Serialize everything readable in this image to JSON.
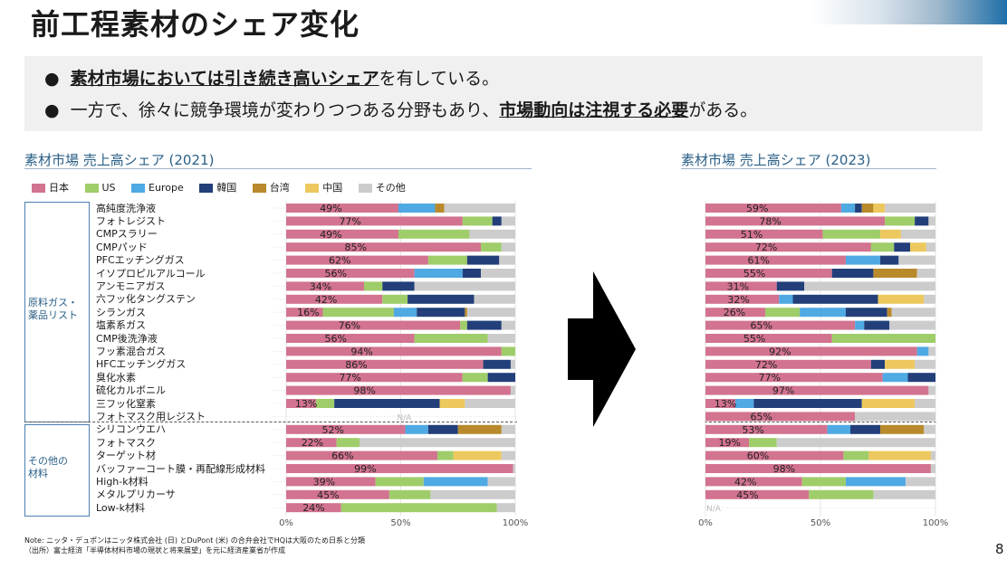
{
  "title": "前工程素材のシェア変化",
  "bullets": [
    {
      "bold": "素材市場においては引き続き高いシェア",
      "rest": "を有している。",
      "pre": ""
    },
    {
      "pre": "一方で、徐々に競争環境が変わりつつある分野もあり、",
      "bold": "市場動向は注視する必要",
      "rest": "がある。"
    }
  ],
  "legend": [
    {
      "name": "日本",
      "color": "#d2738f"
    },
    {
      "name": "US",
      "color": "#9fcd69"
    },
    {
      "name": "Europe",
      "color": "#4fa9e3"
    },
    {
      "name": "韓国",
      "color": "#223f7a"
    },
    {
      "name": "台湾",
      "color": "#b88a2c"
    },
    {
      "name": "中国",
      "color": "#ecc85e"
    },
    {
      "name": "その他",
      "color": "#cccccc"
    }
  ],
  "groups": [
    {
      "name": "原料ガス・\n薬品リスト"
    },
    {
      "name": "その他の\n材料"
    }
  ],
  "chart_data": [
    {
      "type": "stacked-bar-horizontal",
      "title": "素材市場 売上高シェア (2021)",
      "categories": [
        "高純度洗浄液",
        "フォトレジスト",
        "CMPスラリー",
        "CMPパッド",
        "PFCエッチングガス",
        "イソプロピルアルコール",
        "アンモニアガス",
        "六フッ化タングステン",
        "シランガス",
        "塩素系ガス",
        "CMP後洗浄液",
        "フッ素混合ガス",
        "HFCエッチングガス",
        "臭化水素",
        "硫化カルボニル",
        "三フッ化窒素",
        "フォトマスク用レジスト",
        "シリコンウエハ",
        "フォトマスク",
        "ターゲット材",
        "バッファーコート膜・再配線形成材料",
        "High-k材料",
        "メタルプリカーサ",
        "Low-k材料"
      ],
      "series_order": [
        "日本",
        "US",
        "Europe",
        "韓国",
        "台湾",
        "中国",
        "その他"
      ],
      "values": [
        [
          49,
          0,
          16,
          0,
          4,
          0,
          31
        ],
        [
          77,
          13,
          0,
          4,
          0,
          0,
          6
        ],
        [
          49,
          31,
          0,
          0,
          0,
          0,
          20
        ],
        [
          85,
          9,
          0,
          0,
          0,
          0,
          6
        ],
        [
          62,
          17,
          0,
          14,
          0,
          0,
          7
        ],
        [
          56,
          0,
          21,
          8,
          0,
          0,
          15
        ],
        [
          34,
          8,
          0,
          14,
          0,
          0,
          44
        ],
        [
          42,
          11,
          0,
          29,
          0,
          0,
          18
        ],
        [
          16,
          31,
          10,
          21,
          1,
          0,
          21
        ],
        [
          76,
          3,
          0,
          15,
          0,
          0,
          6
        ],
        [
          56,
          32,
          0,
          0,
          0,
          0,
          12
        ],
        [
          94,
          6,
          0,
          0,
          0,
          0,
          0
        ],
        [
          86,
          0,
          0,
          12,
          0,
          0,
          2
        ],
        [
          77,
          11,
          0,
          12,
          0,
          0,
          0
        ],
        [
          98,
          0,
          0,
          0,
          0,
          0,
          2
        ],
        [
          13,
          8,
          0,
          46,
          0,
          11,
          22
        ],
        [
          null,
          null,
          null,
          null,
          null,
          null,
          null
        ],
        [
          52,
          0,
          10,
          13,
          19,
          0,
          6
        ],
        [
          22,
          10,
          0,
          0,
          0,
          0,
          68
        ],
        [
          66,
          7,
          0,
          0,
          0,
          21,
          6
        ],
        [
          99,
          0,
          0,
          0,
          0,
          0,
          1
        ],
        [
          39,
          21,
          28,
          0,
          0,
          0,
          12
        ],
        [
          45,
          18,
          0,
          0,
          0,
          0,
          37
        ],
        [
          24,
          68,
          0,
          0,
          0,
          0,
          8
        ]
      ],
      "labels": [
        "49%",
        "77%",
        "49%",
        "85%",
        "62%",
        "56%",
        "34%",
        "42%",
        "16%",
        "76%",
        "56%",
        "94%",
        "86%",
        "77%",
        "98%",
        "13%",
        "N/A",
        "52%",
        "22%",
        "66%",
        "99%",
        "39%",
        "45%",
        "24%"
      ],
      "axis": {
        "ticks": [
          "0%",
          "50%",
          "100%"
        ],
        "range": [
          0,
          100
        ]
      }
    },
    {
      "type": "stacked-bar-horizontal",
      "title": "素材市場 売上高シェア (2023)",
      "categories": [
        "高純度洗浄液",
        "フォトレジスト",
        "CMPスラリー",
        "CMPパッド",
        "PFCエッチングガス",
        "イソプロピルアルコール",
        "アンモニアガス",
        "六フッ化タングステン",
        "シランガス",
        "塩素系ガス",
        "CMP後洗浄液",
        "フッ素混合ガス",
        "HFCエッチングガス",
        "臭化水素",
        "硫化カルボニル",
        "三フッ化窒素",
        "フォトマスク用レジスト",
        "シリコンウエハ",
        "フォトマスク",
        "ターゲット材",
        "バッファーコート膜・再配線形成材料",
        "High-k材料",
        "メタルプリカーサ",
        "Low-k材料"
      ],
      "series_order": [
        "日本",
        "US",
        "Europe",
        "韓国",
        "台湾",
        "中国",
        "その他"
      ],
      "values": [
        [
          59,
          0,
          6,
          3,
          5,
          5,
          22
        ],
        [
          78,
          13,
          0,
          6,
          0,
          0,
          3
        ],
        [
          51,
          25,
          0,
          0,
          0,
          9,
          15
        ],
        [
          72,
          10,
          0,
          7,
          0,
          7,
          4
        ],
        [
          61,
          0,
          15,
          8,
          0,
          0,
          16
        ],
        [
          55,
          0,
          0,
          18,
          19,
          0,
          8
        ],
        [
          31,
          0,
          0,
          12,
          0,
          0,
          57
        ],
        [
          32,
          0,
          6,
          37,
          0,
          20,
          5
        ],
        [
          26,
          15,
          20,
          18,
          2,
          0,
          19
        ],
        [
          65,
          0,
          4,
          11,
          0,
          0,
          20
        ],
        [
          55,
          45,
          0,
          0,
          0,
          0,
          0
        ],
        [
          92,
          0,
          5,
          0,
          0,
          0,
          3
        ],
        [
          72,
          0,
          0,
          6,
          0,
          13,
          9
        ],
        [
          77,
          0,
          11,
          12,
          0,
          0,
          0
        ],
        [
          97,
          0,
          0,
          0,
          0,
          0,
          3
        ],
        [
          13,
          0,
          8,
          47,
          0,
          23,
          9
        ],
        [
          65,
          0,
          0,
          0,
          0,
          0,
          35
        ],
        [
          53,
          0,
          10,
          13,
          19,
          0,
          5
        ],
        [
          19,
          12,
          0,
          0,
          0,
          0,
          69
        ],
        [
          60,
          11,
          0,
          0,
          0,
          27,
          2
        ],
        [
          98,
          0,
          0,
          0,
          0,
          0,
          2
        ],
        [
          42,
          19,
          26,
          0,
          0,
          0,
          13
        ],
        [
          45,
          28,
          0,
          0,
          0,
          0,
          27
        ],
        [
          null,
          null,
          null,
          null,
          null,
          null,
          null
        ]
      ],
      "labels": [
        "59%",
        "78%",
        "51%",
        "72%",
        "61%",
        "55%",
        "31%",
        "32%",
        "26%",
        "65%",
        "55%",
        "92%",
        "72%",
        "77%",
        "97%",
        "13%",
        "65%",
        "53%",
        "19%",
        "60%",
        "98%",
        "42%",
        "45%",
        "N/A"
      ],
      "axis": {
        "ticks": [
          "0%",
          "50%",
          "100%"
        ],
        "range": [
          0,
          100
        ]
      }
    }
  ],
  "notes": [
    "Note: ニッタ・デュポンはニッタ株式会社 (日) とDuPont (米) の合弁会社でHQは大阪のため日系と分類",
    "（出所）富士経済「半導体材料市場の現状と将来展望」を元に経済産業省が作成"
  ],
  "page_number": "8"
}
